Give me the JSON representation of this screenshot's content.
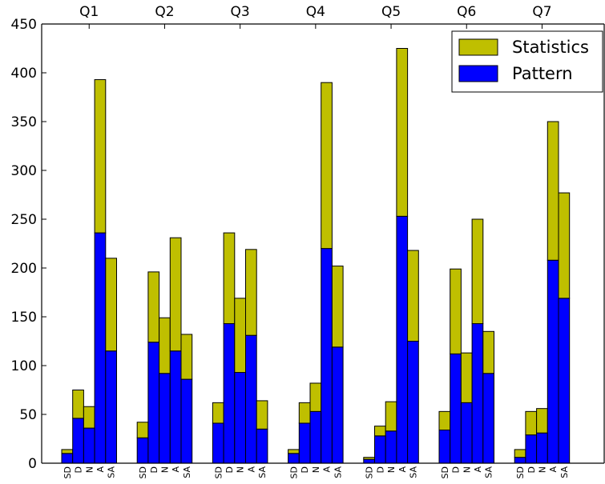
{
  "chart_data": {
    "type": "bar",
    "stacked": true,
    "groups": [
      "Q1",
      "Q2",
      "Q3",
      "Q4",
      "Q5",
      "Q6",
      "Q7"
    ],
    "categories": [
      "SD",
      "D",
      "N",
      "A",
      "SA"
    ],
    "series": [
      {
        "name": "Pattern",
        "color": "#0000ff",
        "values": [
          [
            10,
            46,
            36,
            236,
            115
          ],
          [
            26,
            124,
            92,
            115,
            86
          ],
          [
            41,
            143,
            93,
            131,
            35
          ],
          [
            10,
            41,
            53,
            220,
            119
          ],
          [
            4,
            28,
            33,
            253,
            125
          ],
          [
            34,
            112,
            62,
            143,
            92
          ],
          [
            6,
            29,
            31,
            208,
            169
          ]
        ]
      },
      {
        "name": "Statistics",
        "color": "#bfbf00",
        "values": [
          [
            4,
            29,
            22,
            157,
            95
          ],
          [
            16,
            72,
            57,
            116,
            46
          ],
          [
            21,
            93,
            76,
            88,
            29
          ],
          [
            4,
            21,
            29,
            170,
            83
          ],
          [
            2,
            10,
            30,
            172,
            93
          ],
          [
            19,
            87,
            51,
            107,
            43
          ],
          [
            8,
            24,
            25,
            142,
            108
          ]
        ]
      }
    ],
    "y_ticks": [
      0,
      50,
      100,
      150,
      200,
      250,
      300,
      350,
      400,
      450
    ],
    "ylim": [
      0,
      450
    ],
    "legend": {
      "position": "top-right",
      "entries": [
        "Statistics",
        "Pattern"
      ]
    },
    "grid": false,
    "title": "",
    "xlabel": "",
    "ylabel": ""
  }
}
